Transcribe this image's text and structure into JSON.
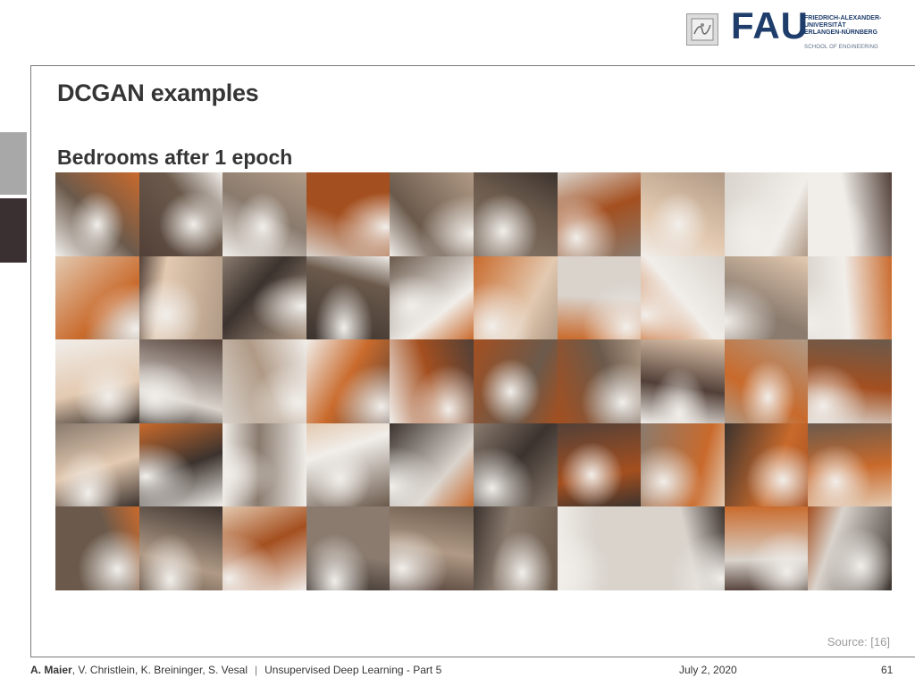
{
  "slide": {
    "title": "DCGAN examples",
    "subtitle": "Bedrooms after 1 epoch",
    "source": "Source: [16]"
  },
  "logo": {
    "wordmark": "FAU",
    "university_lines": [
      "FRIEDRICH-ALEXANDER-",
      "UNIVERSITÄT",
      "ERLANGEN-NÜRNBERG"
    ],
    "school": "SCHOOL OF ENGINEERING"
  },
  "footer": {
    "author_main": "A. Maier",
    "authors_rest": ", V. Christlein, K. Breininger, S. Vesal",
    "separator": "|",
    "lecture": "Unsupervised Deep Learning - Part 5",
    "date": "July 2, 2020",
    "page": "61"
  },
  "colors": {
    "title_text": "#353535",
    "frame": "#7a7a7a",
    "fau_blue": "#1f3d6b",
    "source_text": "#9a9a9a",
    "side_tab_light": "#a8a8a8",
    "side_tab_dark": "#3b3031"
  },
  "image_grid": {
    "description_label": "generated bedroom samples",
    "rows": 5,
    "cols": 10,
    "palette": [
      "#d9d3cc",
      "#c96a2c",
      "#8a7b6e",
      "#3c332e",
      "#f1eeea",
      "#6b5a4c",
      "#b09a86",
      "#e3c9b0",
      "#524038",
      "#a44f1f"
    ]
  }
}
